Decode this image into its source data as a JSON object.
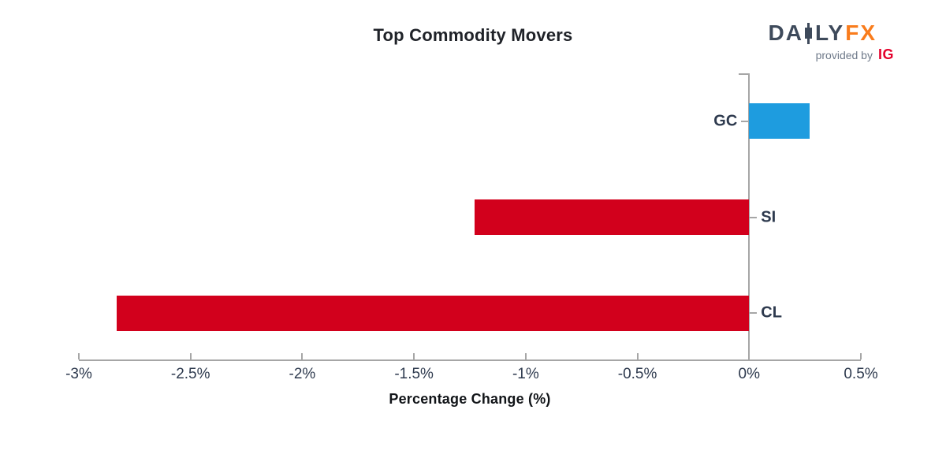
{
  "header": {
    "title": "Top Commodity Movers",
    "logo": {
      "part1": "DA",
      "part2": "LY",
      "part3": "FX",
      "provided_by": "provided by",
      "ig": "IG"
    }
  },
  "chart_data": {
    "type": "bar",
    "orientation": "horizontal",
    "title": "Top Commodity Movers",
    "categories": [
      "GC",
      "SI",
      "CL"
    ],
    "values": [
      0.27,
      -1.23,
      -2.83
    ],
    "xlabel": "Percentage Change (%)",
    "ylabel": "",
    "xlim": [
      -3,
      0.5
    ],
    "xticks": [
      -3,
      -2.5,
      -2,
      -1.5,
      -1,
      -0.5,
      0,
      0.5
    ],
    "xtick_labels": [
      "-3%",
      "-2.5%",
      "-2%",
      "-1.5%",
      "-1%",
      "-0.5%",
      "0%",
      "0.5%"
    ],
    "grid": false,
    "legend": false,
    "bar_colors": [
      "#1E9CDF",
      "#D2001C",
      "#D2001C"
    ]
  },
  "colors": {
    "positive_bar": "#1E9CDF",
    "negative_bar": "#D2001C",
    "axis": "#A6A6A6",
    "tick_text": "#2E3A4E",
    "title_text": "#1F2228",
    "logo_slate": "#3E4A5B",
    "logo_orange": "#F97C1C",
    "provided_by_gray": "#6F7A8A",
    "ig_red": "#E4002B"
  }
}
